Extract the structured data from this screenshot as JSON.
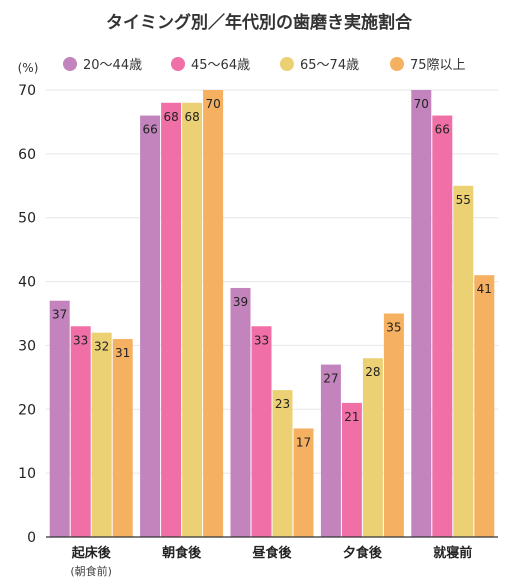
{
  "chart_data": {
    "type": "bar",
    "title": "タイミング別／年代別の歯磨き実施割合",
    "unit_label": "(%)",
    "ylim": [
      0,
      70
    ],
    "yticks": [
      0,
      10,
      20,
      30,
      40,
      50,
      60,
      70
    ],
    "grid": true,
    "legend_position": "top",
    "categories": [
      "起床後",
      "朝食後",
      "昼食後",
      "夕食後",
      "就寝前"
    ],
    "category_sublabels": [
      "(朝食前)",
      "",
      "",
      "",
      ""
    ],
    "series": [
      {
        "name": "20〜44歳",
        "color": "#c383bc",
        "values": [
          37,
          66,
          39,
          27,
          70
        ]
      },
      {
        "name": "45〜64歳",
        "color": "#f06fa6",
        "values": [
          33,
          68,
          33,
          21,
          66
        ]
      },
      {
        "name": "65〜74歳",
        "color": "#ecd174",
        "values": [
          32,
          68,
          23,
          28,
          55
        ]
      },
      {
        "name": "75際以上",
        "color": "#f6b062",
        "values": [
          31,
          70,
          17,
          35,
          41
        ]
      }
    ]
  }
}
